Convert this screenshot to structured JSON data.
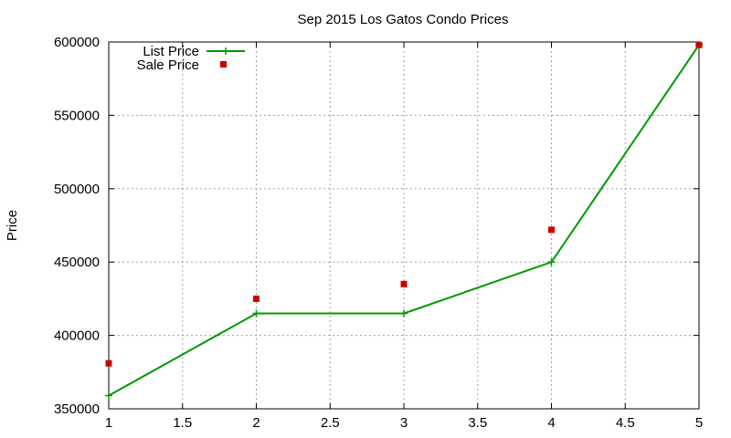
{
  "chart_data": {
    "type": "line",
    "title": "Sep 2015 Los Gatos Condo Prices",
    "xlabel": "",
    "ylabel": "Price",
    "xlim": [
      1,
      5
    ],
    "ylim": [
      350000,
      600000
    ],
    "x_ticks": [
      "1",
      "1.5",
      "2",
      "2.5",
      "3",
      "3.5",
      "4",
      "4.5",
      "5"
    ],
    "y_ticks": [
      "350000",
      "400000",
      "450000",
      "500000",
      "550000",
      "600000"
    ],
    "grid": true,
    "legend_position": "top-left",
    "series": [
      {
        "name": "List Price",
        "style": "line-with-cross-markers",
        "color": "#009900",
        "x": [
          1,
          2,
          3,
          4,
          5
        ],
        "values": [
          359000,
          415000,
          415000,
          450000,
          598000
        ]
      },
      {
        "name": "Sale Price",
        "style": "square-markers",
        "color": "#cc0000",
        "x": [
          1,
          2,
          3,
          4,
          5
        ],
        "values": [
          381000,
          425000,
          435000,
          472000,
          598000
        ]
      }
    ]
  }
}
